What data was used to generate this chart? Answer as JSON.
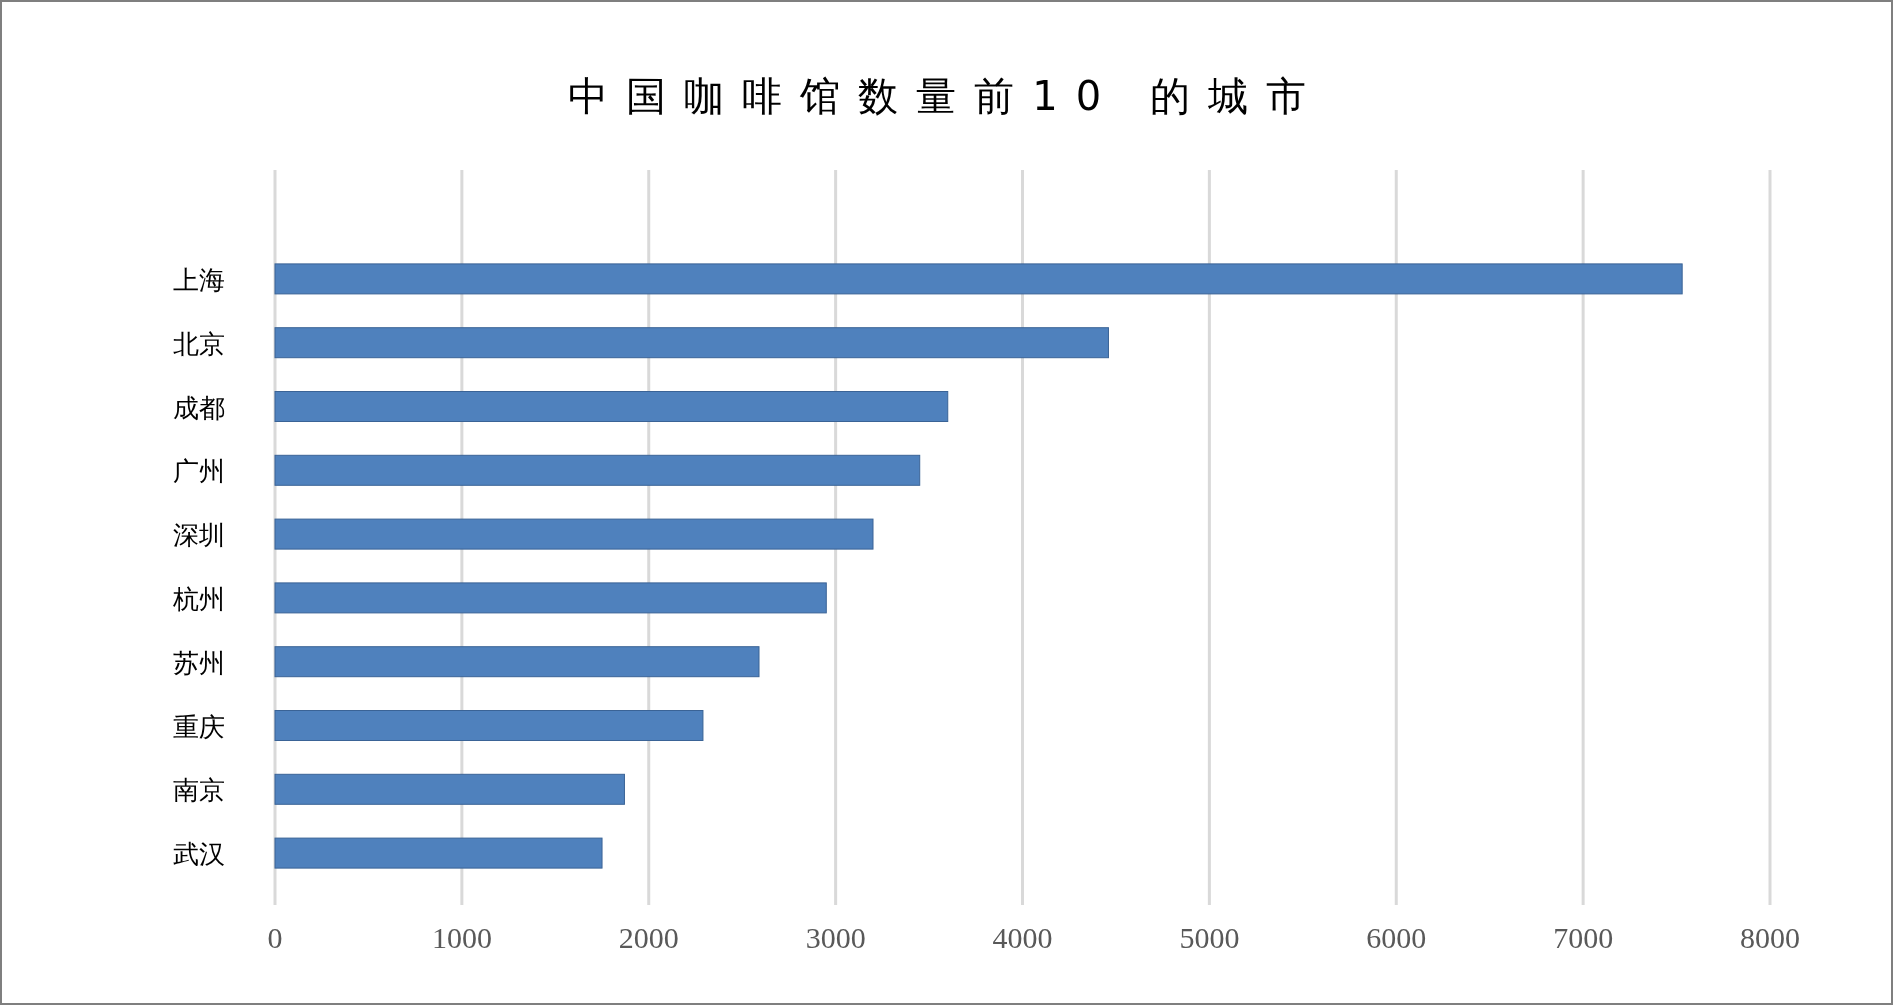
{
  "chart_data": {
    "type": "bar",
    "orientation": "horizontal",
    "title": "中国咖啡馆数量前10 的城市",
    "categories": [
      "上海",
      "北京",
      "成都",
      "广州",
      "深圳",
      "杭州",
      "苏州",
      "重庆",
      "南京",
      "武汉"
    ],
    "values": [
      7530,
      4460,
      3600,
      3450,
      3200,
      2950,
      2590,
      2290,
      1870,
      1750
    ],
    "color": "#4f81bd",
    "xlim": [
      0,
      8000
    ],
    "xticks": [
      0,
      1000,
      2000,
      3000,
      4000,
      5000,
      6000,
      7000,
      8000
    ],
    "grid": "x"
  }
}
